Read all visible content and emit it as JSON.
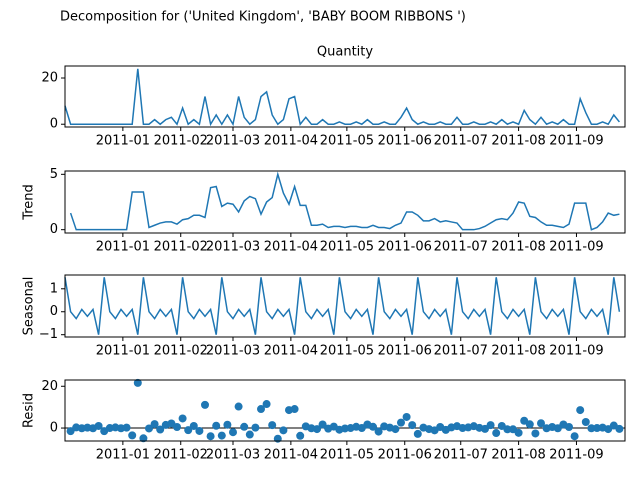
{
  "title": "Decomposition for ('United Kingdom', 'BABY BOOM RIBBONS ')",
  "chart_data": [
    {
      "type": "line",
      "title": "Quantity",
      "color": "#1f77b4",
      "x": [
        0,
        3,
        6,
        9,
        12,
        15,
        18,
        21,
        24,
        27,
        30,
        33,
        36,
        39,
        42,
        45,
        48,
        51,
        54,
        57,
        60,
        63,
        66,
        69,
        72,
        75,
        78,
        81,
        84,
        87,
        90,
        93,
        96,
        99,
        102,
        105,
        108,
        111,
        114,
        117,
        120,
        123,
        126,
        129,
        132,
        135,
        138,
        141,
        144,
        147,
        150,
        153,
        156,
        159,
        162,
        165,
        168,
        171,
        174,
        177,
        180,
        183,
        186,
        189,
        192,
        195,
        198,
        201,
        204,
        207,
        210,
        213,
        216,
        219,
        222,
        225,
        228,
        231,
        234,
        237,
        240,
        243,
        246,
        249,
        252,
        255,
        258,
        261,
        264,
        267,
        270,
        273,
        276,
        279,
        282,
        285,
        288,
        291,
        294,
        297
      ],
      "values": [
        8,
        0,
        0,
        0,
        0,
        0,
        0,
        0,
        0,
        0,
        0,
        0,
        0,
        24,
        0,
        0,
        2,
        0,
        2,
        3,
        0,
        7,
        0,
        2,
        0,
        12,
        0,
        4,
        0,
        4,
        0,
        12,
        3,
        0,
        2,
        12,
        14,
        4,
        0,
        2,
        11,
        12,
        0,
        3,
        0,
        0,
        2,
        0,
        0,
        1,
        0,
        0,
        1,
        0,
        2,
        0,
        0,
        1,
        0,
        0,
        3,
        7,
        2,
        0,
        1,
        0,
        0,
        1,
        0,
        0,
        3,
        0,
        0,
        1,
        0,
        0,
        1,
        0,
        2,
        0,
        1,
        0,
        6,
        2,
        0,
        3,
        0,
        1,
        0,
        2,
        0,
        0,
        11,
        5,
        0,
        0,
        1,
        0,
        4,
        1
      ],
      "xlim": [
        0,
        300
      ],
      "xticks": [
        {
          "value": 31,
          "label": "2011-01"
        },
        {
          "value": 62,
          "label": "2011-02"
        },
        {
          "value": 90,
          "label": "2011-03"
        },
        {
          "value": 121,
          "label": "2011-04"
        },
        {
          "value": 151,
          "label": "2011-05"
        },
        {
          "value": 182,
          "label": "2011-06"
        },
        {
          "value": 212,
          "label": "2011-07"
        },
        {
          "value": 243,
          "label": "2011-08"
        },
        {
          "value": 274,
          "label": "2011-09"
        }
      ],
      "ylim": [
        -1.2,
        25.2
      ],
      "yticks": [
        0,
        20
      ]
    },
    {
      "type": "line",
      "ylabel": "Trend",
      "color": "#1f77b4",
      "x": [
        0,
        3,
        6,
        9,
        12,
        15,
        18,
        21,
        24,
        27,
        30,
        33,
        36,
        39,
        42,
        45,
        48,
        51,
        54,
        57,
        60,
        63,
        66,
        69,
        72,
        75,
        78,
        81,
        84,
        87,
        90,
        93,
        96,
        99,
        102,
        105,
        108,
        111,
        114,
        117,
        120,
        123,
        126,
        129,
        132,
        135,
        138,
        141,
        144,
        147,
        150,
        153,
        156,
        159,
        162,
        165,
        168,
        171,
        174,
        177,
        180,
        183,
        186,
        189,
        192,
        195,
        198,
        201,
        204,
        207,
        210,
        213,
        216,
        219,
        222,
        225,
        228,
        231,
        234,
        237,
        240,
        243,
        246,
        249,
        252,
        255,
        258,
        261,
        264,
        267,
        270,
        273,
        276,
        279,
        282,
        285,
        288,
        291,
        294,
        297
      ],
      "values": [
        null,
        1.5,
        0,
        0,
        0,
        0,
        0,
        0,
        0,
        0,
        0,
        0,
        3.4,
        3.4,
        3.4,
        0.2,
        0.4,
        0.6,
        0.7,
        0.7,
        0.5,
        0.9,
        1.0,
        1.3,
        1.3,
        1.1,
        3.8,
        3.9,
        2.1,
        2.4,
        2.3,
        1.6,
        2.6,
        3.0,
        2.8,
        1.4,
        2.5,
        2.9,
        5.0,
        3.3,
        2.3,
        3.9,
        2.2,
        2.2,
        0.4,
        0.4,
        0.5,
        0.2,
        0.3,
        0.3,
        0.2,
        0.3,
        0.3,
        0.2,
        0.2,
        0.4,
        0.2,
        0.2,
        0.1,
        0.4,
        0.6,
        1.6,
        1.6,
        1.3,
        0.8,
        0.8,
        1.0,
        0.7,
        0.8,
        0.7,
        0.6,
        0.0,
        0.0,
        0.0,
        0.1,
        0.3,
        0.6,
        0.9,
        1.0,
        0.9,
        1.5,
        2.5,
        2.4,
        1.2,
        1.1,
        0.7,
        0.4,
        0.4,
        0.3,
        0.2,
        0.5,
        2.4,
        2.4,
        2.4,
        0.0,
        0.2,
        0.7,
        1.5,
        1.3,
        1.4
      ],
      "xlim": [
        0,
        300
      ],
      "xticks": [
        {
          "value": 31,
          "label": "2011-01"
        },
        {
          "value": 62,
          "label": "2011-02"
        },
        {
          "value": 90,
          "label": "2011-03"
        },
        {
          "value": 121,
          "label": "2011-04"
        },
        {
          "value": 151,
          "label": "2011-05"
        },
        {
          "value": 182,
          "label": "2011-06"
        },
        {
          "value": 212,
          "label": "2011-07"
        },
        {
          "value": 243,
          "label": "2011-08"
        },
        {
          "value": 274,
          "label": "2011-09"
        }
      ],
      "ylim": [
        -0.3,
        5.3
      ],
      "yticks": [
        0,
        5
      ]
    },
    {
      "type": "line",
      "ylabel": "Seasonal",
      "color": "#1f77b4",
      "x": [
        0,
        3,
        6,
        9,
        12,
        15,
        18,
        21,
        24,
        27,
        30,
        33,
        36,
        39,
        42,
        45,
        48,
        51,
        54,
        57,
        60,
        63,
        66,
        69,
        72,
        75,
        78,
        81,
        84,
        87,
        90,
        93,
        96,
        99,
        102,
        105,
        108,
        111,
        114,
        117,
        120,
        123,
        126,
        129,
        132,
        135,
        138,
        141,
        144,
        147,
        150,
        153,
        156,
        159,
        162,
        165,
        168,
        171,
        174,
        177,
        180,
        183,
        186,
        189,
        192,
        195,
        198,
        201,
        204,
        207,
        210,
        213,
        216,
        219,
        222,
        225,
        228,
        231,
        234,
        237,
        240,
        243,
        246,
        249,
        252,
        255,
        258,
        261,
        264,
        267,
        270,
        273,
        276,
        279,
        282,
        285,
        288,
        291,
        294,
        297
      ],
      "values": [
        1.5,
        0,
        -0.3,
        0.1,
        -0.2,
        0.1,
        -1.0,
        1.5,
        0,
        -0.3,
        0.1,
        -0.2,
        0.1,
        -1.0,
        1.5,
        0,
        -0.3,
        0.1,
        -0.2,
        0.1,
        -1.0,
        1.5,
        0,
        -0.3,
        0.1,
        -0.2,
        0.1,
        -1.0,
        1.5,
        0,
        -0.3,
        0.1,
        -0.2,
        0.1,
        -1.0,
        1.5,
        0,
        -0.3,
        0.1,
        -0.2,
        0.1,
        -1.0,
        1.5,
        0,
        -0.3,
        0.1,
        -0.2,
        0.1,
        -1.0,
        1.5,
        0,
        -0.3,
        0.1,
        -0.2,
        0.1,
        -1.0,
        1.5,
        0,
        -0.3,
        0.1,
        -0.2,
        0.1,
        -1.0,
        1.5,
        0,
        -0.3,
        0.1,
        -0.2,
        0.1,
        -1.0,
        1.5,
        0,
        -0.3,
        0.1,
        -0.2,
        0.1,
        -1.0,
        1.5,
        0,
        -0.3,
        0.1,
        -0.2,
        0.1,
        -1.0,
        1.5,
        0,
        -0.3,
        0.1,
        -0.2,
        0.1,
        -1.0,
        1.5,
        0,
        -0.3,
        0.1,
        -0.2,
        0.1,
        -1.0,
        1.5,
        0
      ],
      "xlim": [
        0,
        300
      ],
      "xticks": [
        {
          "value": 31,
          "label": "2011-01"
        },
        {
          "value": 62,
          "label": "2011-02"
        },
        {
          "value": 90,
          "label": "2011-03"
        },
        {
          "value": 121,
          "label": "2011-04"
        },
        {
          "value": 151,
          "label": "2011-05"
        },
        {
          "value": 182,
          "label": "2011-06"
        },
        {
          "value": 212,
          "label": "2011-07"
        },
        {
          "value": 243,
          "label": "2011-08"
        },
        {
          "value": 274,
          "label": "2011-09"
        }
      ],
      "ylim": [
        -1.1,
        1.6
      ],
      "yticks": [
        {
          "value": -1,
          "label": "−1"
        },
        0,
        1
      ]
    },
    {
      "type": "scatter",
      "ylabel": "Resid",
      "color": "#1f77b4",
      "x": [
        0,
        3,
        6,
        9,
        12,
        15,
        18,
        21,
        24,
        27,
        30,
        33,
        36,
        39,
        42,
        45,
        48,
        51,
        54,
        57,
        60,
        63,
        66,
        69,
        72,
        75,
        78,
        81,
        84,
        87,
        90,
        93,
        96,
        99,
        102,
        105,
        108,
        111,
        114,
        117,
        120,
        123,
        126,
        129,
        132,
        135,
        138,
        141,
        144,
        147,
        150,
        153,
        156,
        159,
        162,
        165,
        168,
        171,
        174,
        177,
        180,
        183,
        186,
        189,
        192,
        195,
        198,
        201,
        204,
        207,
        210,
        213,
        216,
        219,
        222,
        225,
        228,
        231,
        234,
        237,
        240,
        243,
        246,
        249,
        252,
        255,
        258,
        261,
        264,
        267,
        270,
        273,
        276,
        279,
        282,
        285,
        288,
        291,
        294,
        297
      ],
      "values": [
        null,
        -1.5,
        0.3,
        -0.1,
        0.2,
        -0.1,
        1.0,
        -1.5,
        0,
        0.3,
        -0.1,
        0.2,
        -3.5,
        21.6,
        -4.9,
        -0.2,
        1.9,
        -0.7,
        1.5,
        2.2,
        0.5,
        4.6,
        -1.0,
        1.0,
        -1.4,
        11.1,
        -3.9,
        1.1,
        -3.6,
        1.6,
        -2.0,
        10.3,
        0.6,
        -3.1,
        0.2,
        9.1,
        11.5,
        1.4,
        -5.1,
        -1.1,
        8.6,
        9.1,
        -3.7,
        0.8,
        -0.1,
        -0.5,
        1.7,
        -0.3,
        0.7,
        -0.8,
        -0.2,
        0,
        0.6,
        0,
        1.7,
        0.6,
        -1.7,
        0.8,
        0.2,
        -0.5,
        2.6,
        5.3,
        1.4,
        -2.8,
        0.2,
        -0.5,
        -1.1,
        0.5,
        -0.9,
        0.3,
        0.9,
        0,
        0.3,
        0.9,
        0.1,
        -0.4,
        1.4,
        -2.4,
        1.0,
        -0.6,
        -0.6,
        -2.3,
        3.5,
        1.8,
        -2.6,
        2.3,
        -0.1,
        0.5,
        -0.1,
        1.7,
        0.5,
        -3.9,
        8.6,
        2.9,
        -0.1,
        0,
        0.2,
        -0.5,
        1.2,
        -0.4
      ],
      "xlim": [
        0,
        300
      ],
      "xticks": [
        {
          "value": 31,
          "label": "2011-01"
        },
        {
          "value": 62,
          "label": "2011-02"
        },
        {
          "value": 90,
          "label": "2011-03"
        },
        {
          "value": 121,
          "label": "2011-04"
        },
        {
          "value": 151,
          "label": "2011-05"
        },
        {
          "value": 182,
          "label": "2011-06"
        },
        {
          "value": 212,
          "label": "2011-07"
        },
        {
          "value": 243,
          "label": "2011-08"
        },
        {
          "value": 274,
          "label": "2011-09"
        }
      ],
      "ylim": [
        -6.2,
        23
      ],
      "yticks": [
        0,
        20
      ]
    }
  ]
}
